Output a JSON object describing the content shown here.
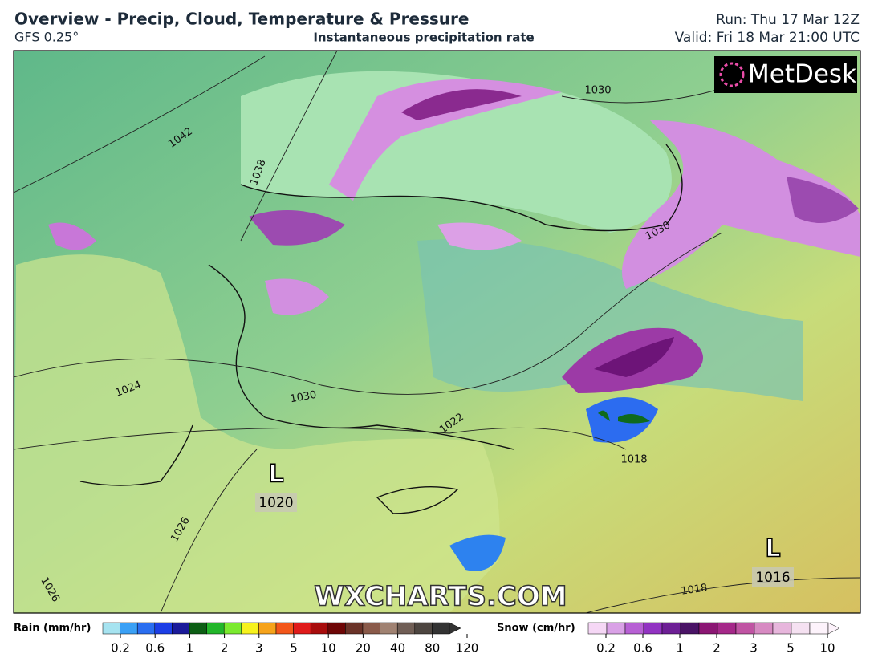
{
  "header": {
    "title": "Overview - Precip, Cloud, Temperature & Pressure",
    "model": "GFS 0.25°",
    "subtitle": "Instantaneous precipitation rate",
    "run": "Run: Thu 17 Mar 12Z",
    "valid": "Valid: Fri 18 Mar 21:00 UTC"
  },
  "map": {
    "logo": "MetDesk",
    "watermark": "WXCHARTS.COM",
    "isobar_labels": [
      "1030",
      "1042",
      "1038",
      "1030",
      "1030",
      "1022",
      "1024",
      "1026",
      "1026",
      "1018",
      "1018"
    ],
    "pressure_centers": [
      {
        "symbol": "L",
        "value": "1020"
      },
      {
        "symbol": "L",
        "value": "1016"
      }
    ]
  },
  "legend": {
    "rain": {
      "label": "Rain (mm/hr)",
      "ticks": [
        "0.2",
        "0.6",
        "1",
        "2",
        "3",
        "5",
        "10",
        "20",
        "40",
        "80",
        "120"
      ]
    },
    "snow": {
      "label": "Snow (cm/hr)",
      "ticks": [
        "0.2",
        "0.6",
        "1",
        "2",
        "3",
        "5",
        "10"
      ]
    }
  }
}
